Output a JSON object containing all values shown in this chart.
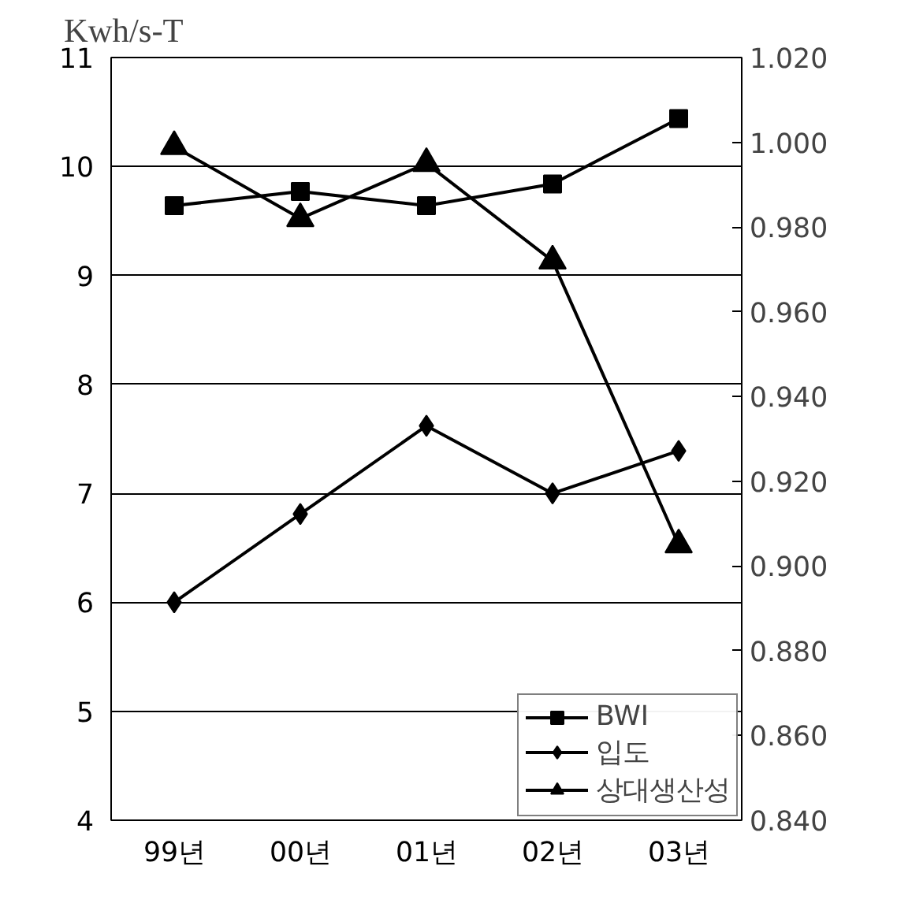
{
  "chart_data": {
    "type": "line",
    "ylabel": "Kwh/s-T",
    "categories": [
      "99년",
      "00년",
      "01년",
      "02년",
      "03년"
    ],
    "ylim": [
      4,
      11
    ],
    "yticks": [
      4,
      5,
      6,
      7,
      8,
      9,
      10,
      11
    ],
    "y2lim": [
      0.84,
      1.02
    ],
    "y2ticks": [
      {
        "value": 0.84,
        "label": "0.840"
      },
      {
        "value": 0.86,
        "label": "0.860"
      },
      {
        "value": 0.88,
        "label": "0.880"
      },
      {
        "value": 0.9,
        "label": "0.900"
      },
      {
        "value": 0.92,
        "label": "0.920"
      },
      {
        "value": 0.94,
        "label": "0.940"
      },
      {
        "value": 0.96,
        "label": "0.960"
      },
      {
        "value": 0.98,
        "label": "0.980"
      },
      {
        "value": 1.0,
        "label": "1.000"
      },
      {
        "value": 1.02,
        "label": "1.020"
      }
    ],
    "grid": "y",
    "legend": "bottom right",
    "series": [
      {
        "name": "BWI",
        "color": "#000000",
        "marker": "square",
        "values": [
          9.64,
          9.77,
          9.64,
          9.84,
          10.44
        ]
      },
      {
        "name": "입도",
        "color": "#000000",
        "marker": "diamond",
        "values": [
          6.0,
          6.81,
          7.62,
          7.0,
          7.39
        ]
      },
      {
        "name": "상대생산성",
        "color": "#000000",
        "marker": "triangle",
        "axis": "y2",
        "values": [
          0.999,
          0.982,
          0.995,
          0.972,
          0.905
        ]
      }
    ]
  }
}
